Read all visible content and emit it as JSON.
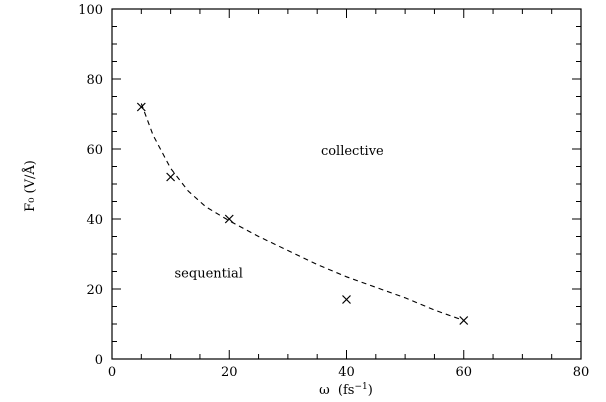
{
  "chart_data": {
    "type": "scatter",
    "xlabel_base": "ω",
    "xlabel_paren": "(fs",
    "xlabel_sup": "−1",
    "xlabel_close": ")",
    "ylabel": "F₀ (V/Å)",
    "xlim": [
      0,
      80
    ],
    "ylim": [
      0,
      100
    ],
    "x_ticks": [
      0,
      20,
      40,
      60,
      80
    ],
    "y_ticks": [
      0,
      20,
      40,
      60,
      80,
      100
    ],
    "x_tick_labels": [
      "0",
      "20",
      "40",
      "60",
      "80"
    ],
    "y_tick_labels": [
      "0",
      "20",
      "40",
      "60",
      "80",
      "100"
    ],
    "x_minor_step": 5,
    "y_minor_step": 5,
    "series": [
      {
        "marker": "x",
        "x": [
          5,
          10,
          20,
          40,
          60
        ],
        "y": [
          72,
          52,
          40,
          17,
          11
        ]
      }
    ],
    "fit_curve": {
      "style": "dashed",
      "x": [
        5,
        7,
        10,
        13,
        16,
        20,
        25,
        30,
        35,
        40,
        45,
        50,
        55,
        60
      ],
      "y": [
        73,
        64,
        54.5,
        48,
        43.5,
        39.5,
        35,
        31,
        27,
        23.5,
        20.5,
        17.5,
        14,
        11
      ]
    },
    "annotations": [
      {
        "text": "collective",
        "x": 41,
        "y": 59.5
      },
      {
        "text": "sequential",
        "x": 16.5,
        "y": 24.5
      }
    ],
    "grid": false,
    "legend": false
  }
}
